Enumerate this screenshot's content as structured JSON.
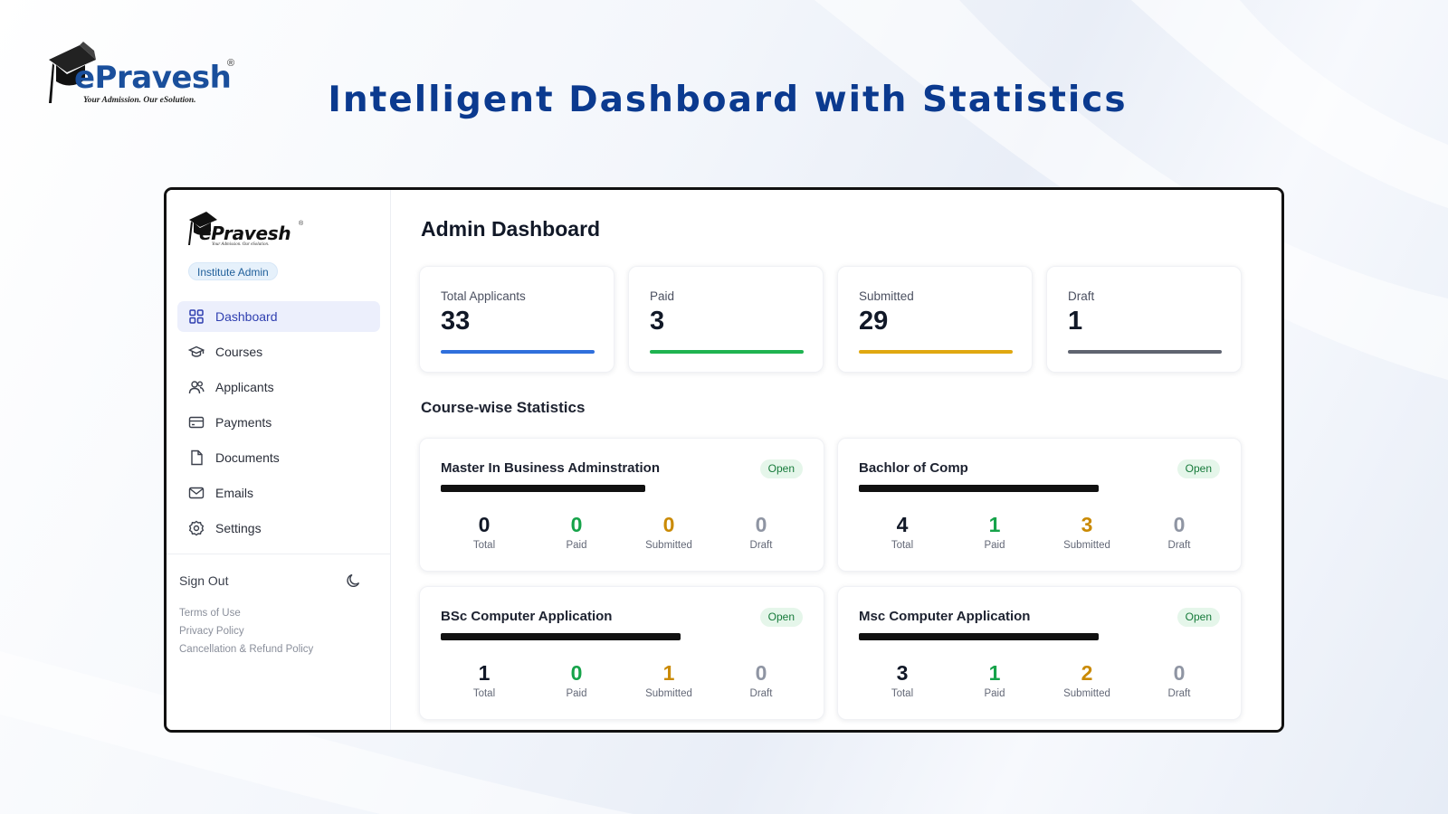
{
  "promo": {
    "brand_name": "ePravesh",
    "brand_registered": "®",
    "brand_tagline": "Your Admission. Our eSolution.",
    "title": "Intelligent Dashboard with Statistics"
  },
  "sidebar": {
    "logo_text": "ePravesh",
    "logo_registered": "®",
    "logo_tagline": "Your Admission. Our eSolution.",
    "role": "Institute Admin",
    "items": [
      {
        "label": "Dashboard",
        "icon": "grid-icon",
        "active": true
      },
      {
        "label": "Courses",
        "icon": "graduation-cap-icon",
        "active": false
      },
      {
        "label": "Applicants",
        "icon": "users-icon",
        "active": false
      },
      {
        "label": "Payments",
        "icon": "credit-card-icon",
        "active": false
      },
      {
        "label": "Documents",
        "icon": "document-icon",
        "active": false
      },
      {
        "label": "Emails",
        "icon": "mail-icon",
        "active": false
      },
      {
        "label": "Settings",
        "icon": "gear-icon",
        "active": false
      }
    ],
    "sign_out": "Sign Out",
    "theme_toggle_icon": "moon-icon",
    "footer_links": [
      "Terms of Use",
      "Privacy Policy",
      "Cancellation & Refund Policy"
    ]
  },
  "main": {
    "title": "Admin Dashboard",
    "stats": [
      {
        "label": "Total Applicants",
        "value": "33",
        "color": "#2f6fdc"
      },
      {
        "label": "Paid",
        "value": "3",
        "color": "#1fb350"
      },
      {
        "label": "Submitted",
        "value": "29",
        "color": "#e0a810"
      },
      {
        "label": "Draft",
        "value": "1",
        "color": "#5f6470"
      }
    ],
    "section_title": "Course-wise Statistics",
    "metric_labels": {
      "total": "Total",
      "paid": "Paid",
      "submitted": "Submitted",
      "draft": "Draft"
    },
    "courses": [
      {
        "name": "Master In Business Adminstration",
        "status": "Open",
        "total": "0",
        "paid": "0",
        "submitted": "0",
        "draft": "0"
      },
      {
        "name": "Bachlor of Comp",
        "status": "Open",
        "total": "4",
        "paid": "1",
        "submitted": "3",
        "draft": "0"
      },
      {
        "name": "BSc Computer Application",
        "status": "Open",
        "total": "1",
        "paid": "0",
        "submitted": "1",
        "draft": "0"
      },
      {
        "name": "Msc Computer Application",
        "status": "Open",
        "total": "3",
        "paid": "1",
        "submitted": "2",
        "draft": "0"
      }
    ]
  }
}
